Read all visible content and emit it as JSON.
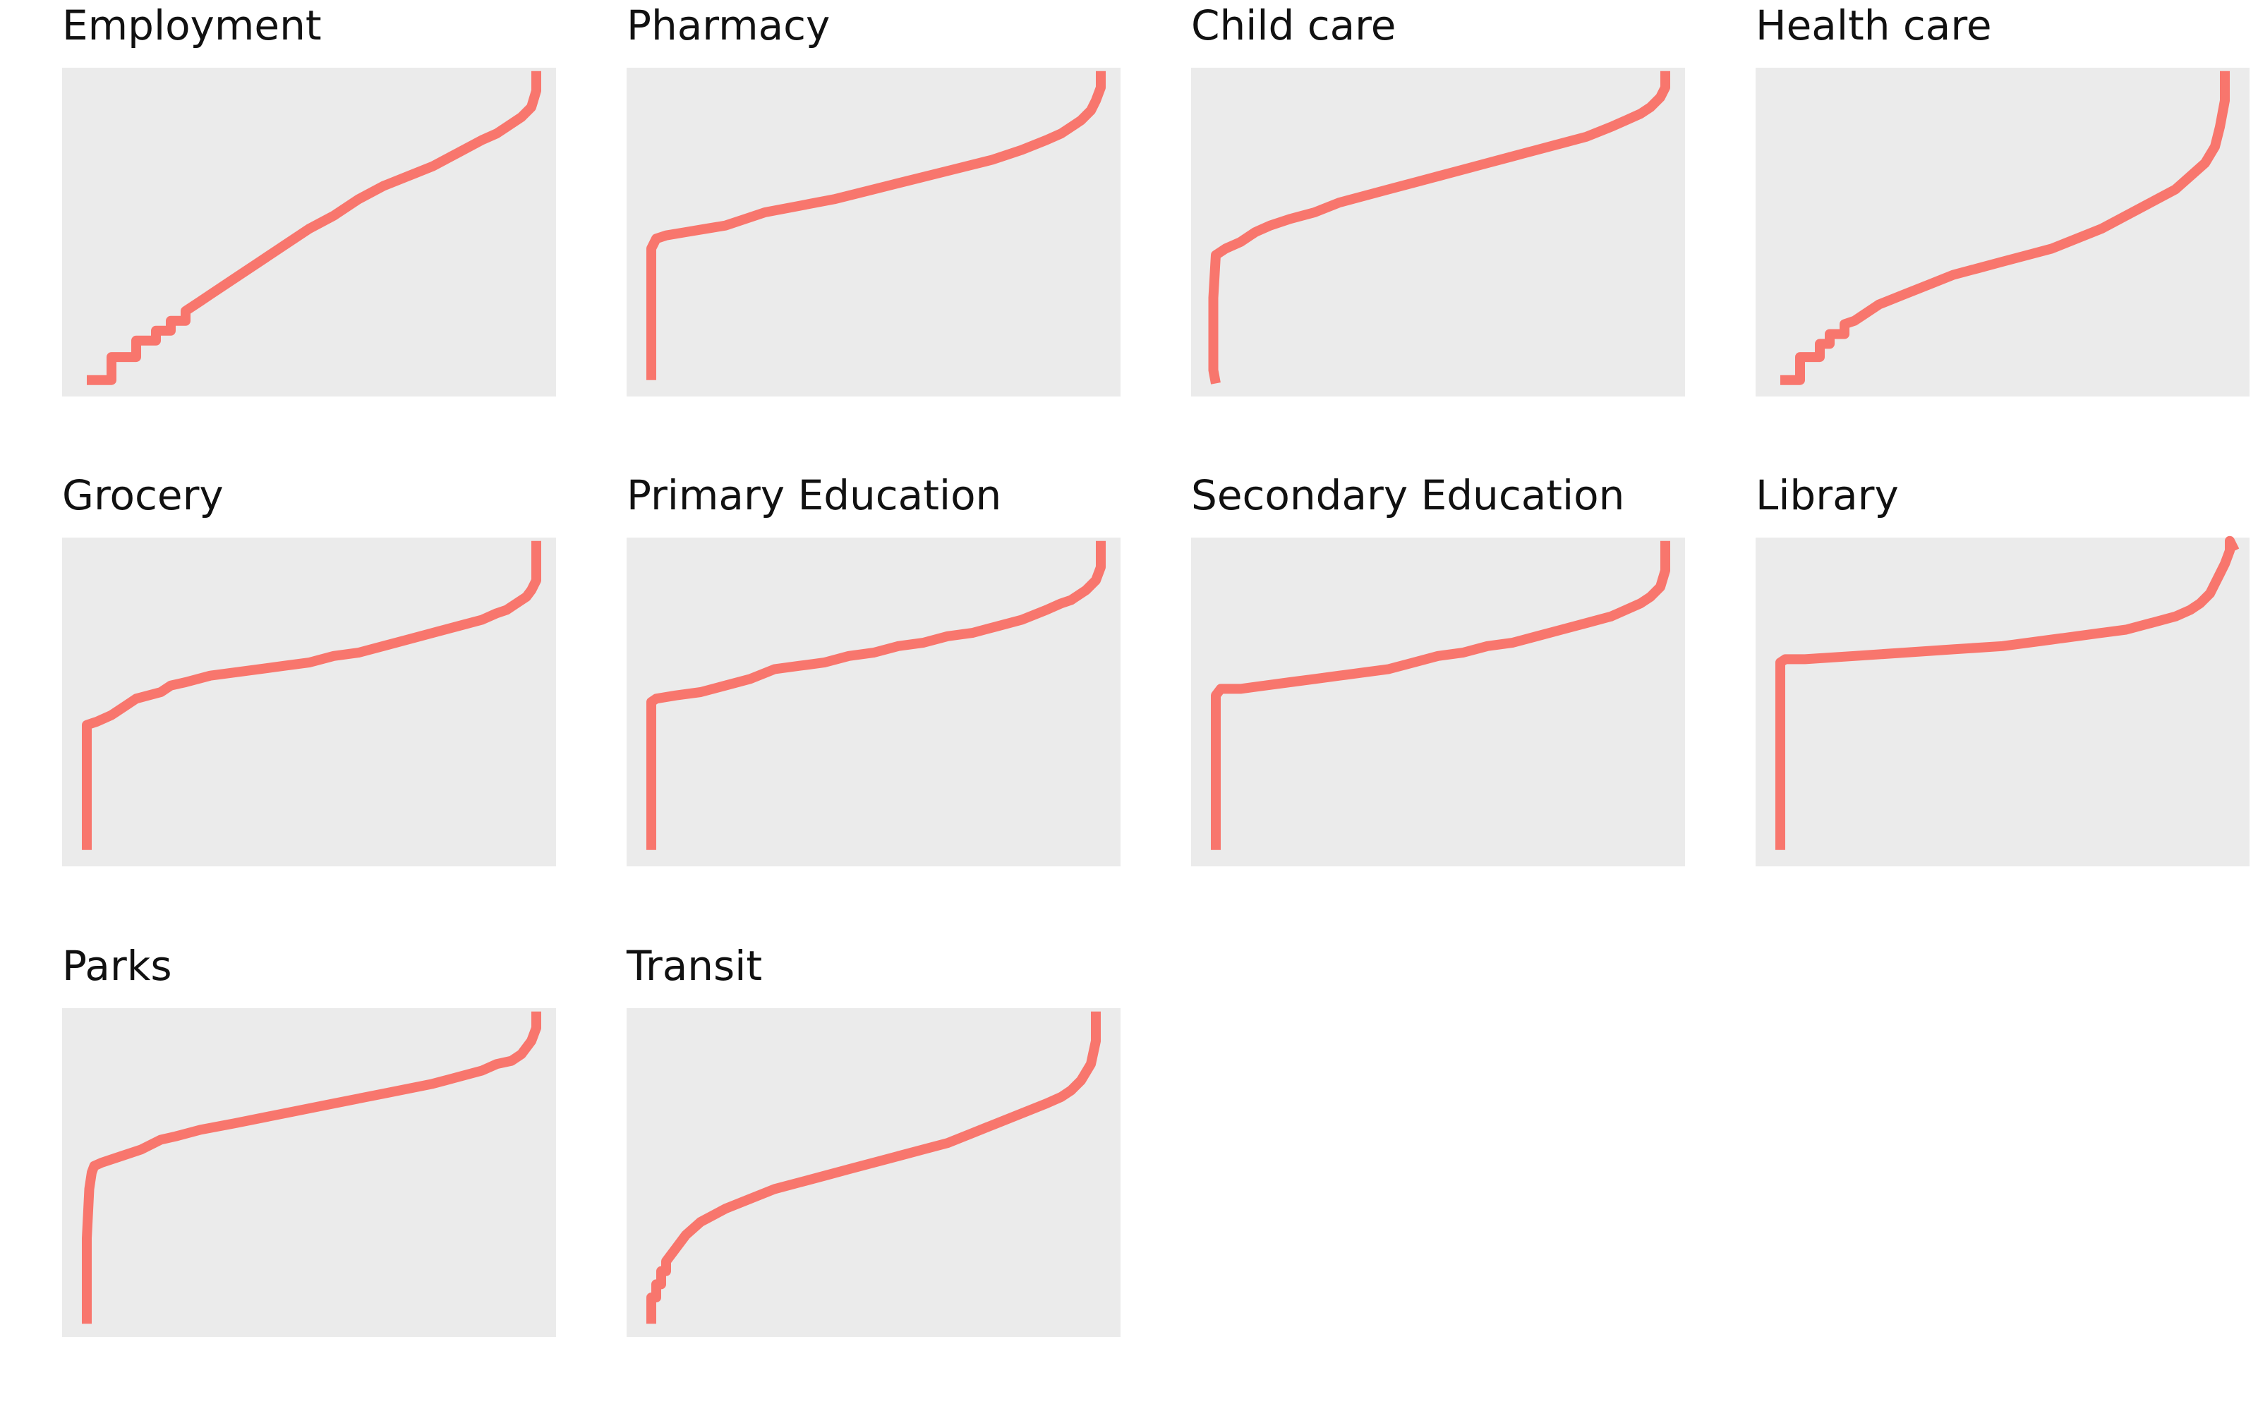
{
  "figure": {
    "colors": {
      "background": "#ffffff",
      "panel_bg": "#ebebeb",
      "line": "#f8766d"
    }
  },
  "chart_data": [
    {
      "type": "line",
      "title": "Employment",
      "xlim": [
        0,
        1
      ],
      "ylim": [
        0,
        1
      ],
      "grid": false,
      "series": [
        {
          "x": [
            0.05,
            0.1,
            0.1,
            0.15,
            0.15,
            0.19,
            0.19,
            0.22,
            0.22,
            0.25,
            0.25,
            0.28,
            0.3,
            0.35,
            0.4,
            0.45,
            0.5,
            0.55,
            0.6,
            0.65,
            0.7,
            0.75,
            0.8,
            0.85,
            0.88,
            0.9,
            0.93,
            0.95,
            0.96,
            0.96
          ],
          "y": [
            0.05,
            0.05,
            0.12,
            0.12,
            0.17,
            0.17,
            0.2,
            0.2,
            0.23,
            0.23,
            0.26,
            0.29,
            0.31,
            0.36,
            0.41,
            0.46,
            0.51,
            0.55,
            0.6,
            0.64,
            0.67,
            0.7,
            0.74,
            0.78,
            0.8,
            0.82,
            0.85,
            0.88,
            0.93,
            0.99
          ]
        }
      ]
    },
    {
      "type": "line",
      "title": "Pharmacy",
      "xlim": [
        0,
        1
      ],
      "ylim": [
        0,
        1
      ],
      "grid": false,
      "series": [
        {
          "x": [
            0.05,
            0.05,
            0.05,
            0.06,
            0.08,
            0.12,
            0.16,
            0.2,
            0.24,
            0.28,
            0.35,
            0.42,
            0.5,
            0.58,
            0.66,
            0.74,
            0.8,
            0.85,
            0.88,
            0.9,
            0.92,
            0.94,
            0.95,
            0.96,
            0.96
          ],
          "y": [
            0.05,
            0.35,
            0.45,
            0.48,
            0.49,
            0.5,
            0.51,
            0.52,
            0.54,
            0.56,
            0.58,
            0.6,
            0.63,
            0.66,
            0.69,
            0.72,
            0.75,
            0.78,
            0.8,
            0.82,
            0.84,
            0.87,
            0.9,
            0.94,
            0.99
          ]
        }
      ]
    },
    {
      "type": "line",
      "title": "Child care",
      "xlim": [
        0,
        1
      ],
      "ylim": [
        0,
        1
      ],
      "grid": false,
      "series": [
        {
          "x": [
            0.05,
            0.045,
            0.045,
            0.05,
            0.07,
            0.1,
            0.13,
            0.16,
            0.2,
            0.25,
            0.3,
            0.35,
            0.4,
            0.45,
            0.5,
            0.55,
            0.6,
            0.65,
            0.7,
            0.75,
            0.8,
            0.85,
            0.88,
            0.91,
            0.93,
            0.95,
            0.96,
            0.96
          ],
          "y": [
            0.04,
            0.08,
            0.3,
            0.43,
            0.45,
            0.47,
            0.5,
            0.52,
            0.54,
            0.56,
            0.59,
            0.61,
            0.63,
            0.65,
            0.67,
            0.69,
            0.71,
            0.73,
            0.75,
            0.77,
            0.79,
            0.82,
            0.84,
            0.86,
            0.88,
            0.91,
            0.94,
            0.99
          ]
        }
      ]
    },
    {
      "type": "line",
      "title": "Health care",
      "xlim": [
        0,
        1
      ],
      "ylim": [
        0,
        1
      ],
      "grid": false,
      "series": [
        {
          "x": [
            0.05,
            0.09,
            0.09,
            0.13,
            0.13,
            0.15,
            0.15,
            0.18,
            0.18,
            0.2,
            0.22,
            0.25,
            0.3,
            0.35,
            0.4,
            0.45,
            0.5,
            0.55,
            0.6,
            0.65,
            0.7,
            0.75,
            0.8,
            0.85,
            0.88,
            0.91,
            0.93,
            0.94,
            0.95,
            0.95
          ],
          "y": [
            0.05,
            0.05,
            0.12,
            0.12,
            0.16,
            0.16,
            0.19,
            0.19,
            0.22,
            0.23,
            0.25,
            0.28,
            0.31,
            0.34,
            0.37,
            0.39,
            0.41,
            0.43,
            0.45,
            0.48,
            0.51,
            0.55,
            0.59,
            0.63,
            0.67,
            0.71,
            0.76,
            0.82,
            0.9,
            0.99
          ]
        }
      ]
    },
    {
      "type": "line",
      "title": "Grocery",
      "xlim": [
        0,
        1
      ],
      "ylim": [
        0,
        1
      ],
      "grid": false,
      "series": [
        {
          "x": [
            0.05,
            0.05,
            0.05,
            0.07,
            0.1,
            0.13,
            0.15,
            0.2,
            0.22,
            0.25,
            0.3,
            0.35,
            0.4,
            0.45,
            0.5,
            0.55,
            0.6,
            0.65,
            0.7,
            0.75,
            0.8,
            0.85,
            0.88,
            0.9,
            0.92,
            0.94,
            0.95,
            0.96,
            0.96
          ],
          "y": [
            0.05,
            0.3,
            0.43,
            0.44,
            0.46,
            0.49,
            0.51,
            0.53,
            0.55,
            0.56,
            0.58,
            0.59,
            0.6,
            0.61,
            0.62,
            0.64,
            0.65,
            0.67,
            0.69,
            0.71,
            0.73,
            0.75,
            0.77,
            0.78,
            0.8,
            0.82,
            0.84,
            0.87,
            0.99
          ]
        }
      ]
    },
    {
      "type": "line",
      "title": "Primary Education",
      "xlim": [
        0,
        1
      ],
      "ylim": [
        0,
        1
      ],
      "grid": false,
      "series": [
        {
          "x": [
            0.05,
            0.05,
            0.05,
            0.06,
            0.1,
            0.15,
            0.2,
            0.25,
            0.3,
            0.35,
            0.4,
            0.45,
            0.5,
            0.55,
            0.6,
            0.65,
            0.7,
            0.75,
            0.8,
            0.85,
            0.88,
            0.9,
            0.93,
            0.95,
            0.96,
            0.96
          ],
          "y": [
            0.05,
            0.38,
            0.5,
            0.51,
            0.52,
            0.53,
            0.55,
            0.57,
            0.6,
            0.61,
            0.62,
            0.64,
            0.65,
            0.67,
            0.68,
            0.7,
            0.71,
            0.73,
            0.75,
            0.78,
            0.8,
            0.81,
            0.84,
            0.87,
            0.91,
            0.99
          ]
        }
      ]
    },
    {
      "type": "line",
      "title": "Secondary Education",
      "xlim": [
        0,
        1
      ],
      "ylim": [
        0,
        1
      ],
      "grid": false,
      "series": [
        {
          "x": [
            0.05,
            0.05,
            0.05,
            0.06,
            0.1,
            0.15,
            0.2,
            0.25,
            0.3,
            0.35,
            0.4,
            0.45,
            0.5,
            0.55,
            0.6,
            0.65,
            0.7,
            0.75,
            0.8,
            0.85,
            0.88,
            0.91,
            0.93,
            0.95,
            0.96,
            0.96
          ],
          "y": [
            0.05,
            0.38,
            0.52,
            0.54,
            0.54,
            0.55,
            0.56,
            0.57,
            0.58,
            0.59,
            0.6,
            0.62,
            0.64,
            0.65,
            0.67,
            0.68,
            0.7,
            0.72,
            0.74,
            0.76,
            0.78,
            0.8,
            0.82,
            0.85,
            0.9,
            0.99
          ]
        }
      ]
    },
    {
      "type": "line",
      "title": "Library",
      "xlim": [
        0,
        1
      ],
      "ylim": [
        0,
        1
      ],
      "grid": false,
      "series": [
        {
          "x": [
            0.05,
            0.05,
            0.05,
            0.06,
            0.1,
            0.2,
            0.3,
            0.4,
            0.5,
            0.6,
            0.65,
            0.7,
            0.75,
            0.8,
            0.85,
            0.88,
            0.9,
            0.92,
            0.93,
            0.94,
            0.95,
            0.96,
            0.96,
            0.97
          ],
          "y": [
            0.05,
            0.45,
            0.62,
            0.63,
            0.63,
            0.64,
            0.65,
            0.66,
            0.67,
            0.69,
            0.7,
            0.71,
            0.72,
            0.74,
            0.76,
            0.78,
            0.8,
            0.83,
            0.86,
            0.89,
            0.92,
            0.96,
            0.99,
            0.96
          ]
        }
      ]
    },
    {
      "type": "line",
      "title": "Parks",
      "xlim": [
        0,
        1
      ],
      "ylim": [
        0,
        1
      ],
      "grid": false,
      "series": [
        {
          "x": [
            0.05,
            0.05,
            0.055,
            0.06,
            0.065,
            0.08,
            0.12,
            0.16,
            0.2,
            0.23,
            0.28,
            0.35,
            0.45,
            0.55,
            0.65,
            0.75,
            0.8,
            0.85,
            0.88,
            0.91,
            0.93,
            0.95,
            0.96,
            0.96
          ],
          "y": [
            0.04,
            0.3,
            0.45,
            0.5,
            0.52,
            0.53,
            0.55,
            0.57,
            0.6,
            0.61,
            0.63,
            0.65,
            0.68,
            0.71,
            0.74,
            0.77,
            0.79,
            0.81,
            0.83,
            0.84,
            0.86,
            0.9,
            0.94,
            0.99
          ]
        }
      ]
    },
    {
      "type": "line",
      "title": "Transit",
      "xlim": [
        0,
        1
      ],
      "ylim": [
        0,
        1
      ],
      "grid": false,
      "series": [
        {
          "x": [
            0.05,
            0.05,
            0.06,
            0.06,
            0.07,
            0.07,
            0.08,
            0.08,
            0.1,
            0.12,
            0.15,
            0.2,
            0.25,
            0.3,
            0.35,
            0.4,
            0.45,
            0.5,
            0.55,
            0.6,
            0.65,
            0.7,
            0.75,
            0.8,
            0.85,
            0.88,
            0.9,
            0.92,
            0.94,
            0.95,
            0.95
          ],
          "y": [
            0.04,
            0.12,
            0.12,
            0.16,
            0.16,
            0.2,
            0.2,
            0.23,
            0.27,
            0.31,
            0.35,
            0.39,
            0.42,
            0.45,
            0.47,
            0.49,
            0.51,
            0.53,
            0.55,
            0.57,
            0.59,
            0.62,
            0.65,
            0.68,
            0.71,
            0.73,
            0.75,
            0.78,
            0.83,
            0.9,
            0.99
          ]
        }
      ]
    }
  ]
}
